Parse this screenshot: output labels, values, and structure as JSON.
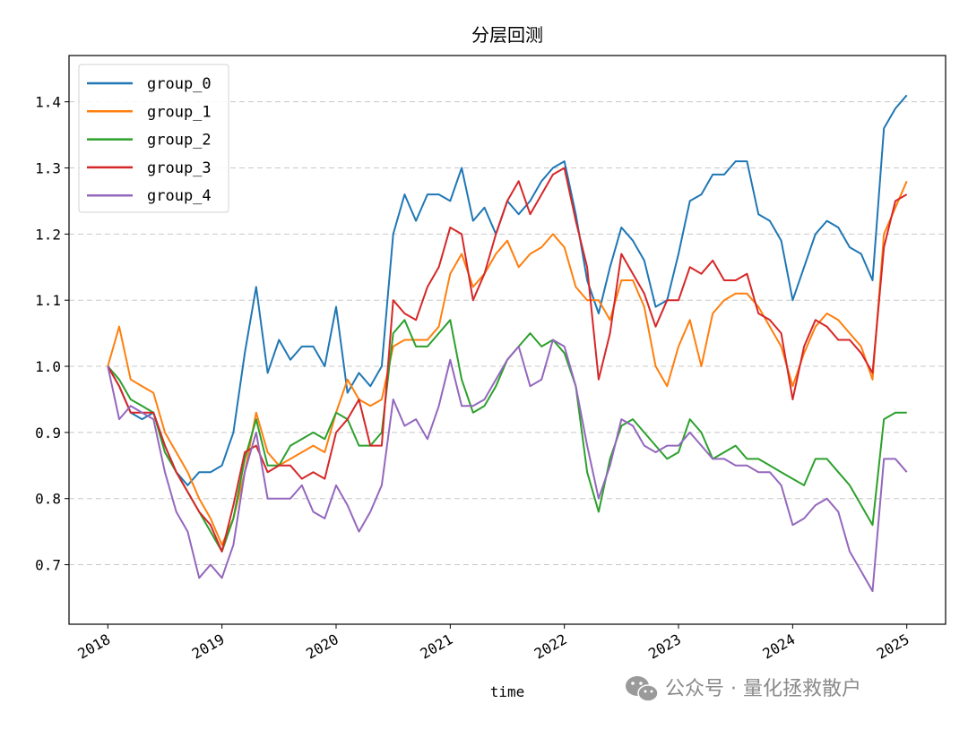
{
  "chart_data": {
    "type": "line",
    "title": "分层回测",
    "xlabel": "time",
    "ylabel": "",
    "xlim": [
      2017.66,
      2025.34
    ],
    "ylim": [
      0.61,
      1.47
    ],
    "grid": "y-dashed",
    "legend_position": "top-left",
    "xticks": [
      2018,
      2019,
      2020,
      2021,
      2022,
      2023,
      2024,
      2025
    ],
    "xtick_labels": [
      "2018",
      "2019",
      "2020",
      "2021",
      "2022",
      "2023",
      "2024",
      "2025"
    ],
    "yticks": [
      0.7,
      0.8,
      0.9,
      1.0,
      1.1,
      1.2,
      1.3,
      1.4
    ],
    "ytick_labels": [
      "0.7",
      "0.8",
      "0.9",
      "1.0",
      "1.1",
      "1.2",
      "1.3",
      "1.4"
    ],
    "x": [
      2018.0,
      2018.1,
      2018.2,
      2018.3,
      2018.4,
      2018.5,
      2018.6,
      2018.7,
      2018.8,
      2018.9,
      2019.0,
      2019.1,
      2019.2,
      2019.3,
      2019.4,
      2019.5,
      2019.6,
      2019.7,
      2019.8,
      2019.9,
      2020.0,
      2020.1,
      2020.2,
      2020.3,
      2020.4,
      2020.5,
      2020.6,
      2020.7,
      2020.8,
      2020.9,
      2021.0,
      2021.1,
      2021.2,
      2021.3,
      2021.4,
      2021.5,
      2021.6,
      2021.7,
      2021.8,
      2021.9,
      2022.0,
      2022.1,
      2022.2,
      2022.3,
      2022.4,
      2022.5,
      2022.6,
      2022.7,
      2022.8,
      2022.9,
      2023.0,
      2023.1,
      2023.2,
      2023.3,
      2023.4,
      2023.5,
      2023.6,
      2023.7,
      2023.8,
      2023.9,
      2024.0,
      2024.1,
      2024.2,
      2024.3,
      2024.4,
      2024.5,
      2024.6,
      2024.7,
      2024.8,
      2024.9,
      2025.0
    ],
    "series": [
      {
        "name": "group_0",
        "color": "#1f77b4",
        "values": [
          1.0,
          0.97,
          0.93,
          0.92,
          0.93,
          0.88,
          0.84,
          0.82,
          0.84,
          0.84,
          0.85,
          0.9,
          1.02,
          1.12,
          0.99,
          1.04,
          1.01,
          1.03,
          1.03,
          1.0,
          1.09,
          0.96,
          0.99,
          0.97,
          1.0,
          1.2,
          1.26,
          1.22,
          1.26,
          1.26,
          1.25,
          1.3,
          1.22,
          1.24,
          1.2,
          1.25,
          1.23,
          1.25,
          1.28,
          1.3,
          1.31,
          1.23,
          1.13,
          1.08,
          1.15,
          1.21,
          1.19,
          1.16,
          1.09,
          1.1,
          1.17,
          1.25,
          1.26,
          1.29,
          1.29,
          1.31,
          1.31,
          1.23,
          1.22,
          1.19,
          1.1,
          1.15,
          1.2,
          1.22,
          1.21,
          1.18,
          1.17,
          1.13,
          1.36,
          1.39,
          1.41
        ]
      },
      {
        "name": "group_1",
        "color": "#ff7f0e",
        "values": [
          1.0,
          1.06,
          0.98,
          0.97,
          0.96,
          0.9,
          0.87,
          0.84,
          0.8,
          0.77,
          0.73,
          0.77,
          0.84,
          0.93,
          0.87,
          0.85,
          0.86,
          0.87,
          0.88,
          0.87,
          0.93,
          0.98,
          0.95,
          0.94,
          0.95,
          1.03,
          1.04,
          1.04,
          1.04,
          1.06,
          1.14,
          1.17,
          1.12,
          1.14,
          1.17,
          1.19,
          1.15,
          1.17,
          1.18,
          1.2,
          1.18,
          1.12,
          1.1,
          1.1,
          1.07,
          1.13,
          1.13,
          1.09,
          1.0,
          0.97,
          1.03,
          1.07,
          1.0,
          1.08,
          1.1,
          1.11,
          1.11,
          1.09,
          1.06,
          1.03,
          0.97,
          1.02,
          1.06,
          1.08,
          1.07,
          1.05,
          1.03,
          0.98,
          1.2,
          1.24,
          1.28
        ]
      },
      {
        "name": "group_2",
        "color": "#2ca02c",
        "values": [
          1.0,
          0.98,
          0.95,
          0.94,
          0.93,
          0.87,
          0.84,
          0.81,
          0.78,
          0.75,
          0.72,
          0.77,
          0.86,
          0.92,
          0.85,
          0.85,
          0.88,
          0.89,
          0.9,
          0.89,
          0.93,
          0.92,
          0.88,
          0.88,
          0.9,
          1.05,
          1.07,
          1.03,
          1.03,
          1.05,
          1.07,
          0.98,
          0.93,
          0.94,
          0.97,
          1.01,
          1.03,
          1.05,
          1.03,
          1.04,
          1.02,
          0.97,
          0.84,
          0.78,
          0.86,
          0.91,
          0.92,
          0.9,
          0.88,
          0.86,
          0.87,
          0.92,
          0.9,
          0.86,
          0.87,
          0.88,
          0.86,
          0.86,
          0.85,
          0.84,
          0.83,
          0.82,
          0.86,
          0.86,
          0.84,
          0.82,
          0.79,
          0.76,
          0.92,
          0.93,
          0.93
        ]
      },
      {
        "name": "group_3",
        "color": "#d62728",
        "values": [
          1.0,
          0.97,
          0.93,
          0.93,
          0.93,
          0.88,
          0.84,
          0.81,
          0.78,
          0.76,
          0.72,
          0.79,
          0.87,
          0.88,
          0.84,
          0.85,
          0.85,
          0.83,
          0.84,
          0.83,
          0.9,
          0.92,
          0.95,
          0.88,
          0.88,
          1.1,
          1.08,
          1.07,
          1.12,
          1.15,
          1.21,
          1.2,
          1.1,
          1.14,
          1.2,
          1.25,
          1.28,
          1.23,
          1.26,
          1.29,
          1.3,
          1.22,
          1.15,
          0.98,
          1.05,
          1.17,
          1.14,
          1.11,
          1.06,
          1.1,
          1.1,
          1.15,
          1.14,
          1.16,
          1.13,
          1.13,
          1.14,
          1.08,
          1.07,
          1.05,
          0.95,
          1.03,
          1.07,
          1.06,
          1.04,
          1.04,
          1.02,
          0.99,
          1.18,
          1.25,
          1.26
        ]
      },
      {
        "name": "group_4",
        "color": "#9467bd",
        "values": [
          1.0,
          0.92,
          0.94,
          0.93,
          0.92,
          0.84,
          0.78,
          0.75,
          0.68,
          0.7,
          0.68,
          0.73,
          0.84,
          0.9,
          0.8,
          0.8,
          0.8,
          0.82,
          0.78,
          0.77,
          0.82,
          0.79,
          0.75,
          0.78,
          0.82,
          0.95,
          0.91,
          0.92,
          0.89,
          0.94,
          1.01,
          0.94,
          0.94,
          0.95,
          0.98,
          1.01,
          1.03,
          0.97,
          0.98,
          1.04,
          1.03,
          0.97,
          0.88,
          0.8,
          0.85,
          0.92,
          0.91,
          0.88,
          0.87,
          0.88,
          0.88,
          0.9,
          0.88,
          0.86,
          0.86,
          0.85,
          0.85,
          0.84,
          0.84,
          0.82,
          0.76,
          0.77,
          0.79,
          0.8,
          0.78,
          0.72,
          0.69,
          0.66,
          0.86,
          0.86,
          0.84
        ]
      }
    ]
  },
  "watermark": {
    "icon": "wechat-icon",
    "text": "公众号 · 量化拯救散户"
  }
}
